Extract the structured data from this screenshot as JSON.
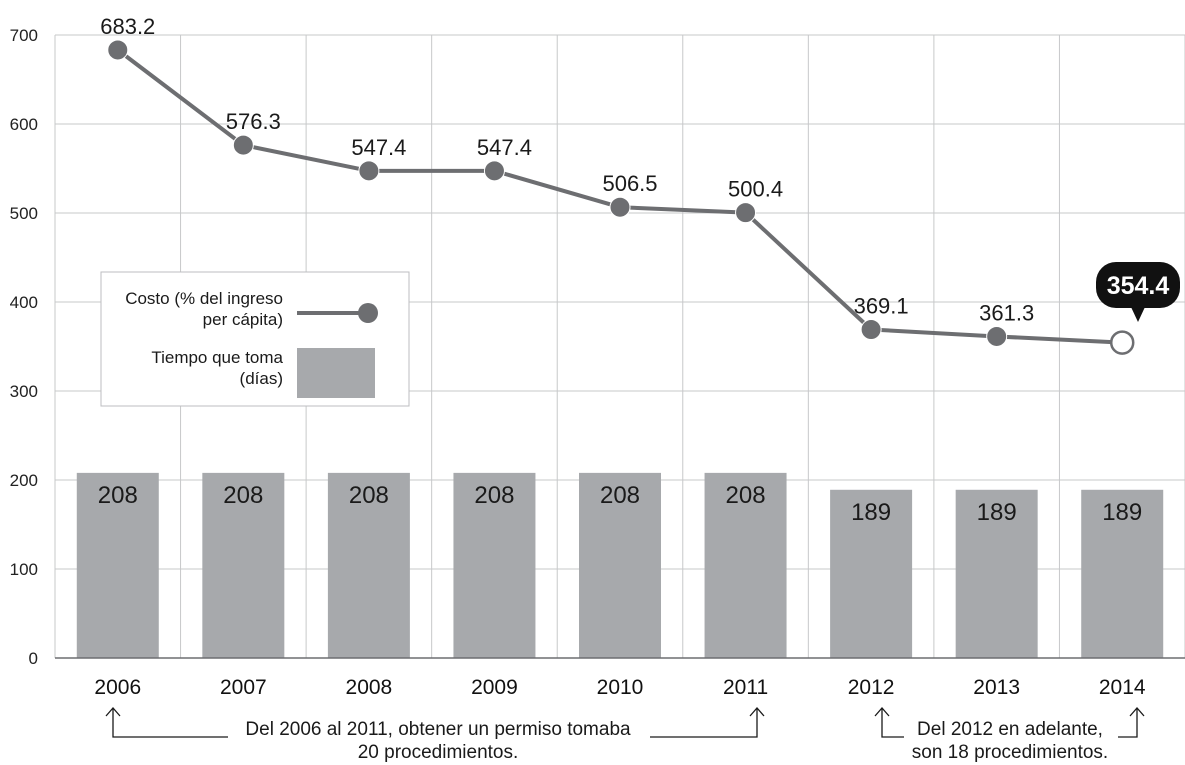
{
  "chart_data": {
    "type": "bar+line",
    "categories": [
      "2006",
      "2007",
      "2008",
      "2009",
      "2010",
      "2011",
      "2012",
      "2013",
      "2014"
    ],
    "ylim": [
      0,
      700
    ],
    "yticks": [
      "0",
      "100",
      "200",
      "300",
      "400",
      "500",
      "600",
      "700"
    ],
    "grid": true,
    "series": [
      {
        "name": "Costo (% del ingreso per cápita)",
        "type": "line",
        "values": [
          683.2,
          576.3,
          547.4,
          547.4,
          506.5,
          500.4,
          369.1,
          361.3,
          354.4
        ],
        "labels": [
          "683.2",
          "576.3",
          "547.4",
          "547.4",
          "506.5",
          "500.4",
          "369.1",
          "361.3",
          "354.4"
        ],
        "color": "#6d6e71"
      },
      {
        "name": "Tiempo que toma (días)",
        "type": "bar",
        "values": [
          208,
          208,
          208,
          208,
          208,
          208,
          189,
          189,
          189
        ],
        "labels": [
          "208",
          "208",
          "208",
          "208",
          "208",
          "208",
          "189",
          "189",
          "189"
        ],
        "color": "#a7a9ac"
      }
    ],
    "legend": {
      "placement": "left-middle",
      "line_label_1": "Costo (% del ingreso",
      "line_label_2": "per cápita)",
      "bar_label_1": "Tiempo que toma",
      "bar_label_2": "(días)"
    },
    "highlight": {
      "index": 8,
      "label": "354.4",
      "color": "#111111"
    },
    "annotations": [
      {
        "text_1": "Del 2006 al 2011, obtener un permiso tomaba",
        "text_2": "20 procedimientos.",
        "from": "2006",
        "to": "2011"
      },
      {
        "text_1": "Del 2012 en adelante,",
        "text_2": "son 18 procedimientos.",
        "from": "2012",
        "to": "2014"
      }
    ]
  }
}
